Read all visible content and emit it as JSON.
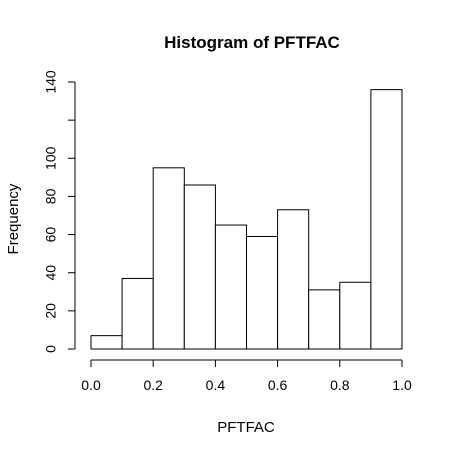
{
  "chart_data": {
    "type": "bar",
    "title": "Histogram of PFTFAC",
    "xlabel": "PFTFAC",
    "ylabel": "Frequency",
    "bins": [
      {
        "start": 0.0,
        "end": 0.1,
        "count": 7
      },
      {
        "start": 0.1,
        "end": 0.2,
        "count": 37
      },
      {
        "start": 0.2,
        "end": 0.3,
        "count": 95
      },
      {
        "start": 0.3,
        "end": 0.4,
        "count": 86
      },
      {
        "start": 0.4,
        "end": 0.5,
        "count": 65
      },
      {
        "start": 0.5,
        "end": 0.6,
        "count": 59
      },
      {
        "start": 0.6,
        "end": 0.7,
        "count": 73
      },
      {
        "start": 0.7,
        "end": 0.8,
        "count": 31
      },
      {
        "start": 0.8,
        "end": 0.9,
        "count": 35
      },
      {
        "start": 0.9,
        "end": 1.0,
        "count": 136
      }
    ],
    "xlim": [
      0.0,
      1.0
    ],
    "ylim": [
      0,
      140
    ],
    "x_ticks": [
      {
        "value": 0.0,
        "label": "0.0"
      },
      {
        "value": 0.2,
        "label": "0.2"
      },
      {
        "value": 0.4,
        "label": "0.4"
      },
      {
        "value": 0.6,
        "label": "0.6"
      },
      {
        "value": 0.8,
        "label": "0.8"
      },
      {
        "value": 1.0,
        "label": "1.0"
      }
    ],
    "y_ticks": [
      {
        "value": 0,
        "label": "0"
      },
      {
        "value": 20,
        "label": "20"
      },
      {
        "value": 40,
        "label": "40"
      },
      {
        "value": 60,
        "label": "60"
      },
      {
        "value": 80,
        "label": "80"
      },
      {
        "value": 100,
        "label": "100"
      },
      {
        "value": 120,
        "label": ""
      },
      {
        "value": 140,
        "label": "140"
      }
    ],
    "grid": false,
    "colors": {
      "bar_fill": "#ffffff",
      "bar_stroke": "#000000"
    }
  }
}
